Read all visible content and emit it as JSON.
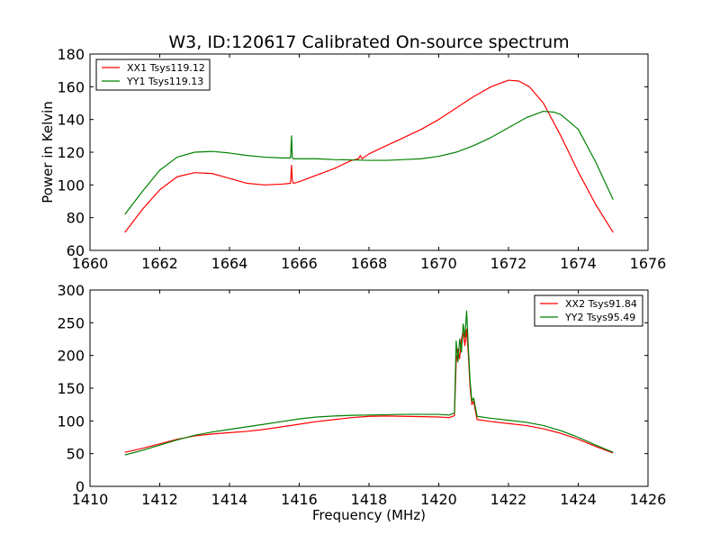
{
  "chart_data": [
    {
      "type": "line",
      "title": "W3, ID:120617 Calibrated On-source spectrum",
      "xlabel": "",
      "ylabel": "Power in Kelvin",
      "xlim": [
        1660,
        1676
      ],
      "ylim": [
        60,
        180
      ],
      "xticks": [
        "1660",
        "1662",
        "1664",
        "1666",
        "1668",
        "1670",
        "1672",
        "1674",
        "1676"
      ],
      "yticks": [
        "60",
        "80",
        "100",
        "120",
        "140",
        "160",
        "180"
      ],
      "grid": false,
      "legend_position": "top-left",
      "series": [
        {
          "name": "XX1 Tsys119.12",
          "color": "#ff0000",
          "x": [
            1661.0,
            1661.5,
            1662.0,
            1662.5,
            1663.0,
            1663.5,
            1664.0,
            1664.5,
            1665.0,
            1665.5,
            1665.75,
            1665.78,
            1665.8,
            1665.83,
            1666.0,
            1666.5,
            1667.0,
            1667.5,
            1667.7,
            1667.75,
            1667.8,
            1668.0,
            1668.5,
            1669.0,
            1669.5,
            1670.0,
            1670.5,
            1671.0,
            1671.5,
            1672.0,
            1672.3,
            1672.6,
            1673.0,
            1673.5,
            1674.0,
            1674.5,
            1675.0
          ],
          "y": [
            71,
            85,
            97,
            105,
            107.5,
            107,
            104,
            101,
            100,
            100.5,
            101,
            112,
            103,
            101,
            102,
            106,
            110,
            115,
            116,
            118,
            116,
            119,
            124,
            129,
            134,
            140,
            147,
            154,
            160,
            164,
            163.5,
            160,
            150,
            130,
            108,
            88,
            71
          ]
        },
        {
          "name": "YY1 Tsys119.13",
          "color": "#008000",
          "x": [
            1661.0,
            1661.5,
            1662.0,
            1662.5,
            1663.0,
            1663.5,
            1664.0,
            1664.5,
            1665.0,
            1665.5,
            1665.75,
            1665.78,
            1665.8,
            1665.83,
            1666.0,
            1666.5,
            1667.0,
            1667.5,
            1668.0,
            1668.5,
            1669.0,
            1669.5,
            1670.0,
            1670.5,
            1671.0,
            1671.5,
            1672.0,
            1672.5,
            1673.0,
            1673.3,
            1673.5,
            1674.0,
            1674.5,
            1675.0
          ],
          "y": [
            82,
            96,
            109,
            117,
            120,
            120.5,
            119.5,
            118,
            117,
            116.5,
            116.5,
            130,
            117,
            116,
            116,
            116,
            115.5,
            115.3,
            115,
            115,
            115.5,
            116,
            117.5,
            120,
            124,
            129,
            135,
            141,
            145,
            144.5,
            143,
            134,
            114,
            91
          ]
        }
      ]
    },
    {
      "type": "line",
      "title": "",
      "xlabel": "Frequency (MHz)",
      "ylabel": "",
      "xlim": [
        1410,
        1426
      ],
      "ylim": [
        0,
        300
      ],
      "xticks": [
        "1410",
        "1412",
        "1414",
        "1416",
        "1418",
        "1420",
        "1422",
        "1424",
        "1426"
      ],
      "yticks": [
        "0",
        "50",
        "100",
        "150",
        "200",
        "250",
        "300"
      ],
      "grid": false,
      "legend_position": "top-right",
      "series": [
        {
          "name": "XX2 Tsys91.84",
          "color": "#ff0000",
          "x": [
            1411.0,
            1411.5,
            1412.0,
            1412.5,
            1413.0,
            1413.5,
            1414.0,
            1414.5,
            1415.0,
            1415.5,
            1416.0,
            1416.5,
            1417.0,
            1417.5,
            1418.0,
            1418.5,
            1419.0,
            1419.5,
            1420.0,
            1420.3,
            1420.45,
            1420.5,
            1420.55,
            1420.6,
            1420.65,
            1420.7,
            1420.75,
            1420.8,
            1420.85,
            1420.9,
            1420.95,
            1421.0,
            1421.1,
            1421.5,
            1422.0,
            1422.5,
            1423.0,
            1423.5,
            1424.0,
            1424.5,
            1425.0
          ],
          "y": [
            52,
            58,
            65,
            72,
            77,
            80,
            82,
            84,
            87,
            91,
            95,
            99,
            102,
            105,
            107,
            107.5,
            107,
            106.5,
            106,
            105,
            108,
            190,
            210,
            195,
            225,
            235,
            215,
            240,
            200,
            150,
            125,
            130,
            102,
            99,
            96,
            93,
            88,
            81,
            72,
            61,
            51
          ]
        },
        {
          "name": "YY2 Tsys95.49",
          "color": "#008000",
          "x": [
            1411.0,
            1411.5,
            1412.0,
            1412.5,
            1413.0,
            1413.5,
            1414.0,
            1414.5,
            1415.0,
            1415.5,
            1416.0,
            1416.5,
            1417.0,
            1417.5,
            1418.0,
            1418.5,
            1419.0,
            1419.5,
            1420.0,
            1420.3,
            1420.45,
            1420.5,
            1420.55,
            1420.6,
            1420.65,
            1420.7,
            1420.75,
            1420.8,
            1420.85,
            1420.9,
            1420.95,
            1421.0,
            1421.1,
            1421.5,
            1422.0,
            1422.5,
            1423.0,
            1423.5,
            1424.0,
            1424.5,
            1425.0
          ],
          "y": [
            48,
            55,
            63,
            71,
            78,
            83,
            87,
            91,
            95,
            99,
            103,
            106,
            107.5,
            108.5,
            109,
            109.5,
            110,
            110,
            110,
            109,
            112,
            222,
            190,
            225,
            205,
            248,
            228,
            268,
            210,
            160,
            130,
            135,
            107,
            104,
            101,
            98,
            93,
            85,
            75,
            63,
            52
          ]
        }
      ]
    }
  ]
}
